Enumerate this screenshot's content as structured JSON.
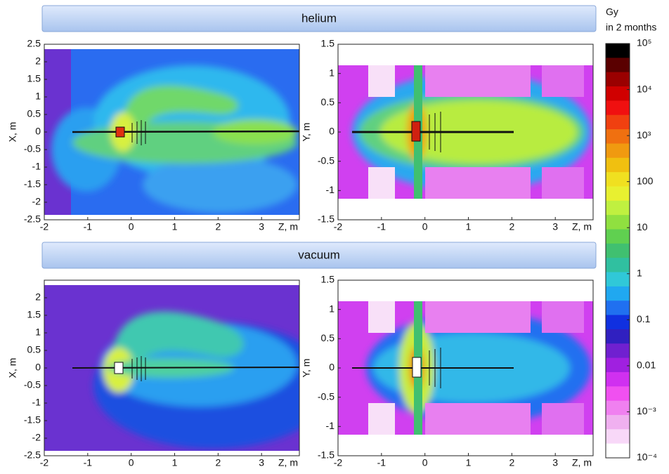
{
  "banners": [
    "helium",
    "vacuum"
  ],
  "chart_data": [
    {
      "type": "heatmap",
      "x_label": "Z, m",
      "y_label": "X, m",
      "xlim": [
        -2,
        3.87
      ],
      "xticks": [
        -2,
        -1,
        0,
        1,
        2,
        3
      ],
      "ylim": [
        -2.5,
        2.5
      ],
      "yticks": [
        2.5,
        2,
        1.5,
        1,
        0.5,
        0,
        -0.5,
        -1,
        -1.5,
        -2,
        -2.5
      ]
    },
    {
      "type": "heatmap",
      "x_label": "Z, m",
      "y_label": "Y, m",
      "xlim": [
        -2,
        3.87
      ],
      "xticks": [
        -2,
        -1,
        0,
        1,
        2,
        3
      ],
      "ylim": [
        -1.5,
        1.5
      ],
      "yticks": [
        1.5,
        1,
        0.5,
        0,
        -0.5,
        -1,
        -1.5
      ]
    },
    {
      "type": "heatmap",
      "x_label": "Z, m",
      "y_label": "X, m",
      "xlim": [
        -2,
        3.87
      ],
      "xticks": [
        -2,
        -1,
        0,
        1,
        2,
        3
      ],
      "ylim": [
        -2.5,
        2.5
      ],
      "yticks": [
        2,
        1.5,
        1,
        0.5,
        0,
        -0.5,
        -1,
        -1.5,
        -2,
        -2.5
      ]
    },
    {
      "type": "heatmap",
      "x_label": "Z, m",
      "y_label": "Y, m",
      "xlim": [
        -2,
        3.87
      ],
      "xticks": [
        -2,
        -1,
        0,
        1,
        2,
        3
      ],
      "ylim": [
        -1.5,
        1.5
      ],
      "yticks": [
        1.5,
        1,
        0.5,
        0,
        -0.5,
        -1,
        -1.5
      ]
    }
  ],
  "colorbar": {
    "title": [
      "Gy",
      "in 2 months"
    ],
    "log": true,
    "lim": [
      0.0001,
      100000
    ],
    "ticks": [
      {
        "value": 100000,
        "label": "10⁵"
      },
      {
        "value": 10000,
        "label": "10⁴"
      },
      {
        "value": 1000,
        "label": "10³"
      },
      100,
      10,
      1,
      0.1,
      0.01,
      {
        "value": 0.001,
        "label": "10⁻³"
      },
      {
        "value": 0.0001,
        "label": "10⁻⁴"
      }
    ],
    "colors": [
      "#000000",
      "#5a0000",
      "#9a0000",
      "#d00000",
      "#f01010",
      "#f04010",
      "#f07010",
      "#f09a10",
      "#f0c010",
      "#f0e020",
      "#e8f030",
      "#c0f040",
      "#90e040",
      "#60d050",
      "#40c070",
      "#30c0a0",
      "#30c8d8",
      "#20a8f0",
      "#2070f0",
      "#1030e0",
      "#3020c0",
      "#7020d0",
      "#a020e0",
      "#d030f0",
      "#f050f0",
      "#f080f0",
      "#f0b0f0",
      "#f8d8f8",
      "#ffffff"
    ]
  }
}
